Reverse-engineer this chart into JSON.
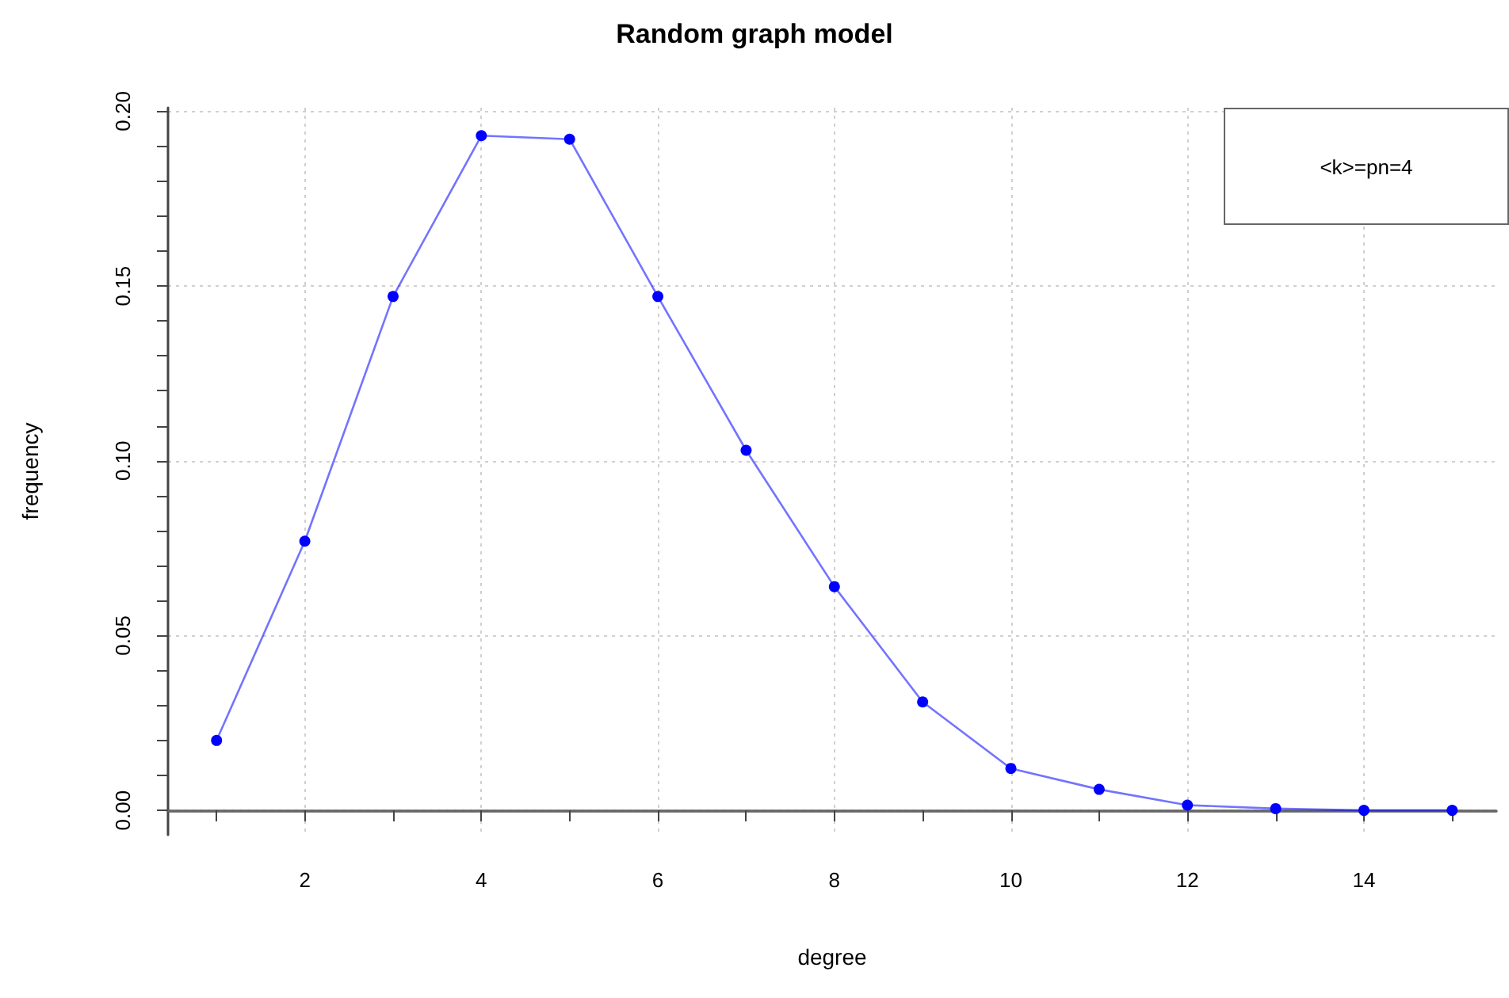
{
  "chart_data": {
    "type": "line",
    "title": "Random graph model",
    "xlabel": "degree",
    "ylabel": "frequency",
    "annotations": [
      "<k>=pn=4"
    ],
    "x": [
      1,
      2,
      3,
      4,
      5,
      6,
      7,
      8,
      9,
      10,
      11,
      12,
      13,
      14,
      15
    ],
    "series": [
      {
        "color": "#0000ff",
        "values": [
          0.02,
          0.077,
          0.147,
          0.193,
          0.192,
          0.147,
          0.103,
          0.064,
          0.031,
          0.012,
          0.006,
          0.0015,
          0.0005,
          0.0,
          0.0
        ]
      }
    ],
    "xlim": [
      0.45,
      15.5
    ],
    "xticks": [
      {
        "value": 1,
        "label": null
      },
      2,
      {
        "value": 3,
        "label": null
      },
      4,
      {
        "value": 5,
        "label": null
      },
      6,
      {
        "value": 7,
        "label": null
      },
      8,
      {
        "value": 9,
        "label": null
      },
      10,
      {
        "value": 11,
        "label": null
      },
      12,
      {
        "value": 13,
        "label": null
      },
      14,
      {
        "value": 15,
        "label": null
      }
    ],
    "ylim": [
      -0.007,
      0.201
    ],
    "yticks": [
      {
        "value": 0,
        "label": "0.00"
      },
      {
        "value": 0.01,
        "label": null
      },
      {
        "value": 0.02,
        "label": null
      },
      {
        "value": 0.03,
        "label": null
      },
      {
        "value": 0.04,
        "label": null
      },
      {
        "value": 0.05,
        "label": "0.05"
      },
      {
        "value": 0.06,
        "label": null
      },
      {
        "value": 0.07,
        "label": null
      },
      {
        "value": 0.08,
        "label": null
      },
      {
        "value": 0.09,
        "label": null
      },
      {
        "value": 0.1,
        "label": "0.10"
      },
      {
        "value": 0.11,
        "label": null
      },
      {
        "value": 0.12,
        "label": null
      },
      {
        "value": 0.13,
        "label": null
      },
      {
        "value": 0.14,
        "label": null
      },
      {
        "value": 0.15,
        "label": "0.15"
      },
      {
        "value": 0.16,
        "label": null
      },
      {
        "value": 0.17,
        "label": null
      },
      {
        "value": 0.18,
        "label": null
      },
      {
        "value": 0.19,
        "label": null
      },
      {
        "value": 0.2,
        "label": "0.20"
      }
    ],
    "grid": true,
    "marker": "circle",
    "line_style": "solid"
  }
}
